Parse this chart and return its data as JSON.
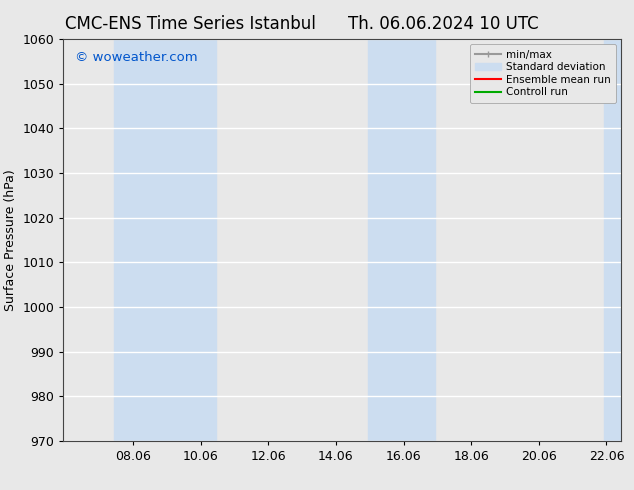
{
  "title_left": "CMC-ENS Time Series Istanbul",
  "title_right": "Th. 06.06.2024 10 UTC",
  "ylabel": "Surface Pressure (hPa)",
  "ylim": [
    970,
    1060
  ],
  "yticks": [
    970,
    980,
    990,
    1000,
    1010,
    1020,
    1030,
    1040,
    1050,
    1060
  ],
  "xlim_start": 6.0,
  "xlim_end": 22.5,
  "xticks": [
    8.06,
    10.06,
    12.06,
    14.06,
    16.06,
    18.06,
    20.06,
    22.06
  ],
  "xtick_labels": [
    "08.06",
    "10.06",
    "12.06",
    "14.06",
    "16.06",
    "18.06",
    "20.06",
    "22.06"
  ],
  "watermark": "© woweather.com",
  "watermark_color": "#0055cc",
  "plot_bg_color": "#e8e8e8",
  "fig_bg_color": "#e8e8e8",
  "shaded_regions": [
    {
      "x_start": 7.5,
      "x_end": 10.5,
      "color": "#ccddf0"
    },
    {
      "x_start": 15.0,
      "x_end": 17.0,
      "color": "#ccddf0"
    },
    {
      "x_start": 22.0,
      "x_end": 22.5,
      "color": "#ccddf0"
    }
  ],
  "legend_items": [
    {
      "label": "min/max",
      "color": "#999999",
      "lw": 1.5
    },
    {
      "label": "Standard deviation",
      "color": "#ccddf0",
      "lw": 8
    },
    {
      "label": "Ensemble mean run",
      "color": "#ff0000",
      "lw": 1.5
    },
    {
      "label": "Controll run",
      "color": "#00aa00",
      "lw": 1.5
    }
  ],
  "title_fontsize": 12,
  "tick_fontsize": 9,
  "label_fontsize": 9,
  "grid_color": "#ffffff",
  "grid_lw": 1.0
}
